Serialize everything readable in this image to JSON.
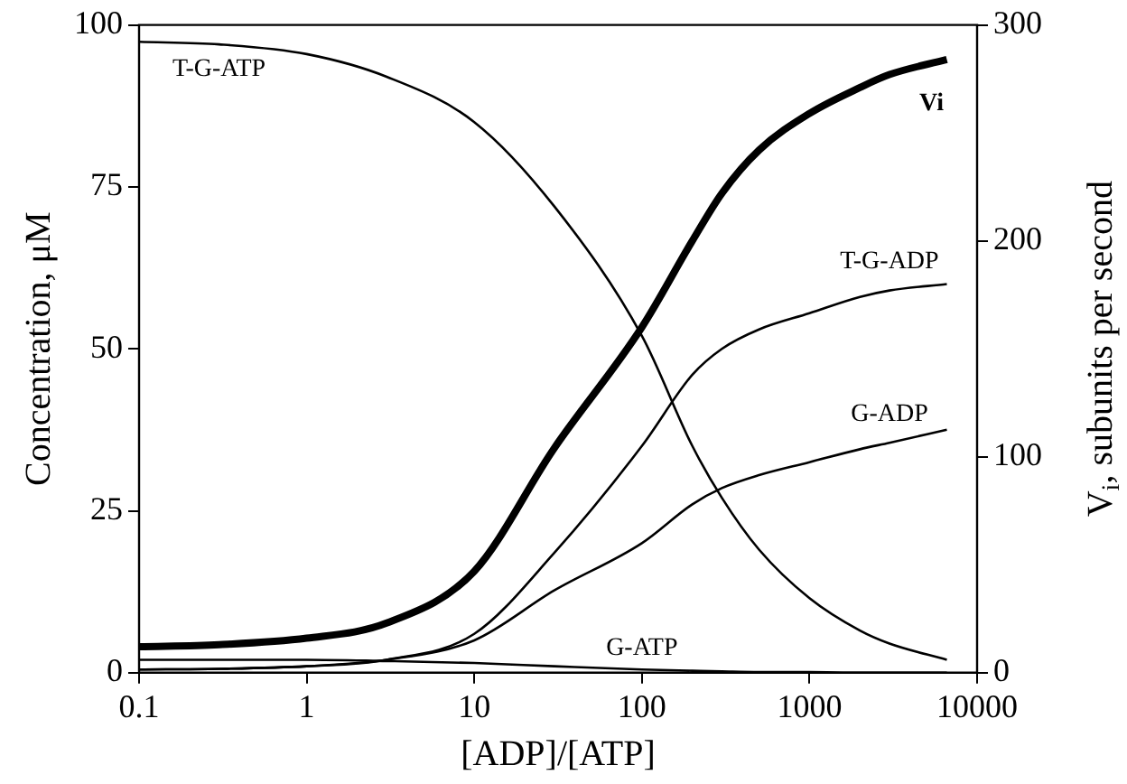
{
  "chart_data": {
    "type": "line",
    "xlabel": "[ADP]/[ATP]",
    "ylabel": "Concentration, μM",
    "y2label": "V$_{i}$, subunits per second",
    "x": [
      0.1,
      0.3,
      1,
      3,
      10,
      30,
      100,
      200,
      300,
      500,
      1000,
      2000,
      3000,
      6600
    ],
    "series": [
      {
        "name": "T-G-ATP",
        "color": "#000000",
        "values": [
          97.4,
          97,
          95.5,
          92,
          85,
          72,
          52,
          35,
          27,
          19,
          11.5,
          6.5,
          4.5,
          2
        ]
      },
      {
        "name": "Vi",
        "color": "#000000",
        "axis": "y2",
        "values": [
          12,
          13,
          16,
          23,
          47,
          104,
          160,
          200,
          222,
          242,
          259,
          271,
          277,
          284
        ]
      },
      {
        "name": "T-G-ADP",
        "color": "#000000",
        "values": [
          0.5,
          0.6,
          1,
          2,
          6,
          18.5,
          35,
          46,
          50,
          53,
          55.5,
          58,
          59,
          60
        ]
      },
      {
        "name": "G-ADP",
        "color": "#000000",
        "values": [
          0.5,
          0.6,
          1,
          2,
          5,
          12.7,
          20,
          26,
          28.5,
          30.5,
          32.5,
          34.5,
          35.5,
          37.5
        ]
      },
      {
        "name": "G-ATP",
        "color": "#000000",
        "values": [
          2,
          2,
          2,
          1.8,
          1.5,
          1,
          0.5,
          0.3,
          0.2,
          0.1,
          0.1,
          0,
          0,
          0
        ]
      }
    ],
    "log": "x",
    "xlim": [
      0.1,
      10000
    ],
    "xticks": [
      0.1,
      1,
      10,
      100,
      1000,
      10000
    ],
    "ylim": [
      0,
      100
    ],
    "yticks": [
      0,
      25,
      50,
      75,
      100
    ],
    "y2lim": [
      0,
      300
    ],
    "y2ticks": [
      0,
      100,
      200,
      300
    ],
    "grid": false,
    "legend": false,
    "marker": "none",
    "line_style": "solid"
  }
}
